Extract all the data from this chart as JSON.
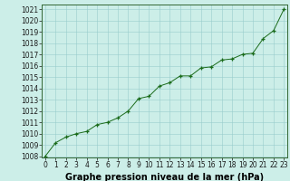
{
  "x": [
    0,
    1,
    2,
    3,
    4,
    5,
    6,
    7,
    8,
    9,
    10,
    11,
    12,
    13,
    14,
    15,
    16,
    17,
    18,
    19,
    20,
    21,
    22,
    23
  ],
  "y": [
    1008.0,
    1009.2,
    1009.7,
    1010.0,
    1010.2,
    1010.8,
    1011.0,
    1011.4,
    1012.0,
    1013.1,
    1013.3,
    1014.2,
    1014.5,
    1015.1,
    1015.1,
    1015.8,
    1015.9,
    1016.5,
    1016.6,
    1017.0,
    1017.1,
    1018.4,
    1019.1,
    1021.0
  ],
  "x_labels": [
    "0",
    "1",
    "2",
    "3",
    "4",
    "5",
    "6",
    "7",
    "8",
    "9",
    "10",
    "11",
    "12",
    "13",
    "14",
    "15",
    "16",
    "17",
    "18",
    "19",
    "20",
    "21",
    "22",
    "23"
  ],
  "y_min": 1008,
  "y_max": 1021,
  "y_tick_step": 1,
  "line_color": "#1a6b1a",
  "marker_color": "#1a6b1a",
  "bg_color": "#cceee8",
  "grid_color": "#99cccc",
  "xlabel": "Graphe pression niveau de la mer (hPa)",
  "xlabel_fontsize": 7,
  "tick_fontsize": 5.5,
  "fig_bg": "#cceee8",
  "spine_color": "#336633"
}
